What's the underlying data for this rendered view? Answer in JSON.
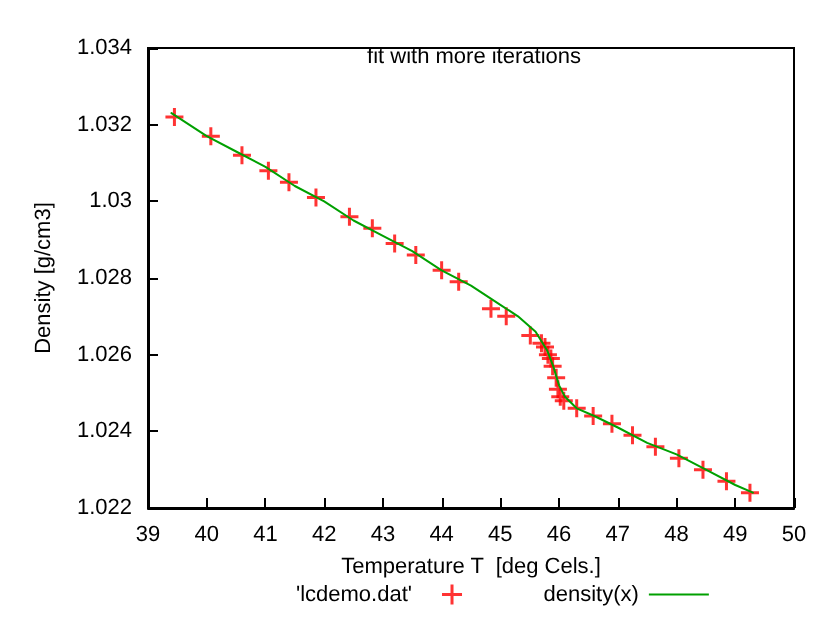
{
  "chart_data": {
    "type": "scatter",
    "title": "fit with more iterations",
    "xlabel": "Temperature T  [deg Cels.]",
    "ylabel": "Density [g/cm3]",
    "xlim": [
      39,
      50
    ],
    "xticks": [
      39,
      40,
      41,
      42,
      43,
      44,
      45,
      46,
      47,
      48,
      49,
      50
    ],
    "ylim": [
      1.022,
      1.034
    ],
    "yticks": [
      1.022,
      1.024,
      1.026,
      1.028,
      1.03,
      1.032,
      1.034
    ],
    "grid": false,
    "legend": "bottom",
    "series": [
      {
        "name": "'lcdemo.dat'",
        "marker": "cross",
        "color": "#ff0000",
        "x": [
          39.45,
          40.07,
          40.6,
          41.05,
          41.4,
          41.86,
          42.43,
          42.82,
          43.2,
          43.56,
          44.0,
          44.29,
          44.84,
          45.1,
          45.51,
          45.7,
          45.76,
          45.81,
          45.86,
          45.89,
          45.95,
          45.98,
          46.02,
          46.08,
          46.3,
          46.58,
          46.9,
          47.25,
          47.64,
          48.04,
          48.45,
          48.85,
          49.25
        ],
        "values": [
          1.0322,
          1.0317,
          1.0312,
          1.0308,
          1.0305,
          1.0301,
          1.0296,
          1.0293,
          1.0289,
          1.0286,
          1.0282,
          1.0279,
          1.0272,
          1.027,
          1.0265,
          1.0263,
          1.0262,
          1.026,
          1.0259,
          1.0257,
          1.0254,
          1.0251,
          1.0249,
          1.0248,
          1.0246,
          1.0244,
          1.0242,
          1.0239,
          1.0236,
          1.0233,
          1.023,
          1.0227,
          1.0224
        ]
      },
      {
        "name": "density(x)",
        "type": "line",
        "marker": "none",
        "line_style": "solid",
        "color": "#00a000",
        "x": [
          39.4,
          40,
          40.5,
          41,
          41.5,
          42,
          42.5,
          43,
          43.5,
          44,
          44.5,
          45,
          45.3,
          45.6,
          45.8,
          45.9,
          46,
          46.1,
          46.3,
          46.6,
          47,
          47.5,
          48,
          48.5,
          49,
          49.3
        ],
        "values": [
          1.0323,
          1.0317,
          1.0313,
          1.0309,
          1.0304,
          1.03,
          1.0295,
          1.0291,
          1.0287,
          1.0282,
          1.0278,
          1.0273,
          1.027,
          1.0266,
          1.0261,
          1.0257,
          1.0252,
          1.0249,
          1.0246,
          1.0244,
          1.0241,
          1.0237,
          1.0234,
          1.023,
          1.0226,
          1.0224
        ]
      }
    ]
  }
}
